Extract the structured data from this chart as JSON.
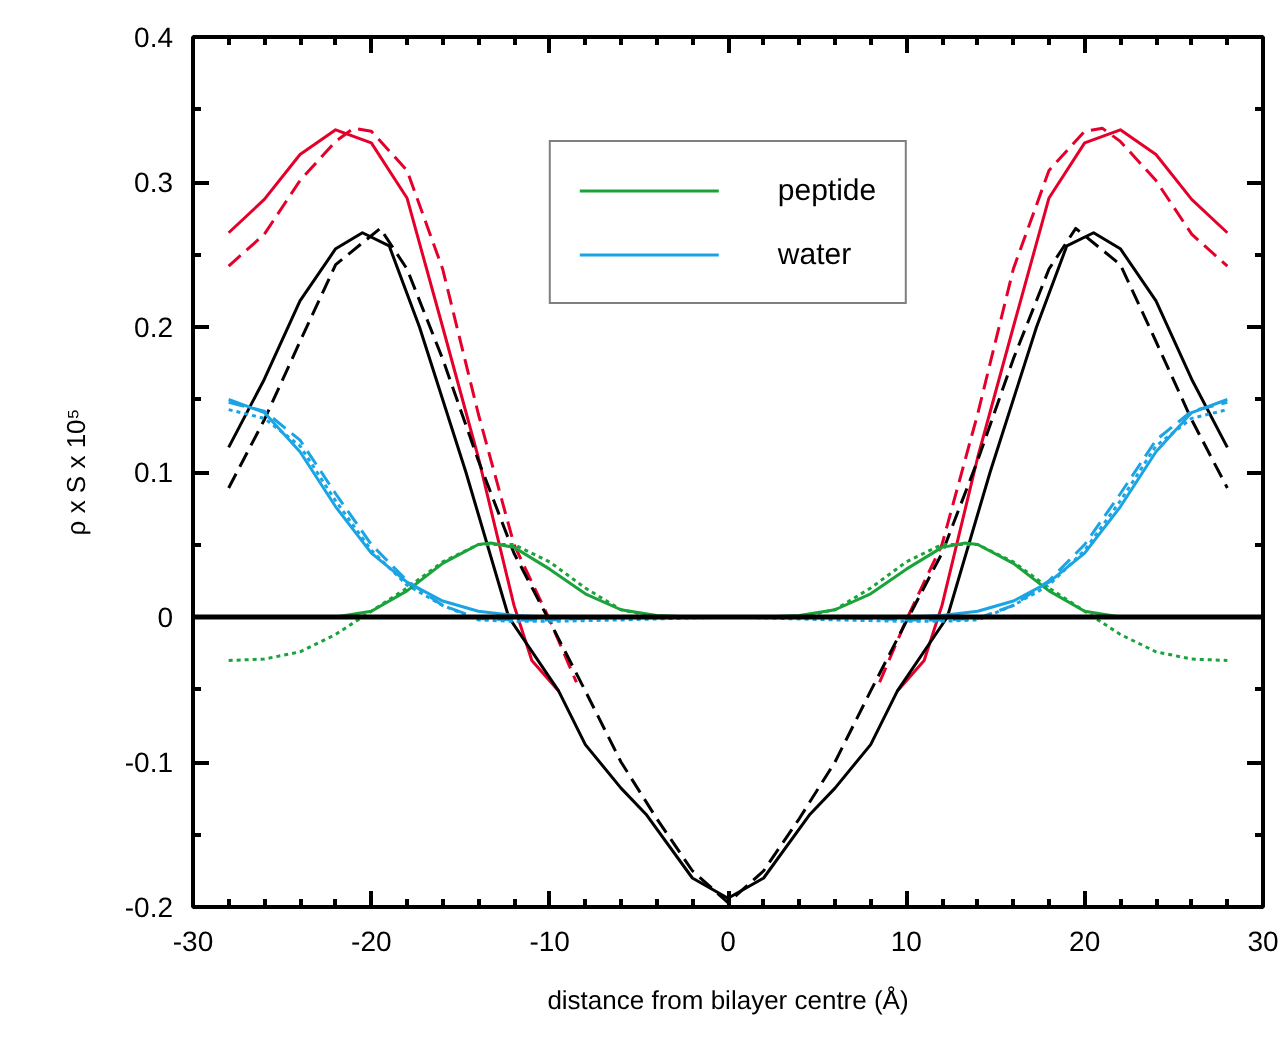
{
  "chart_data": {
    "type": "line",
    "xlabel": "distance from bilayer centre (Å)",
    "ylabel": "ρ x S x 10⁵",
    "xlim": [
      -30,
      30
    ],
    "ylim": [
      -0.2,
      0.4
    ],
    "xticks": [
      -30,
      -20,
      -10,
      0,
      10,
      20,
      30
    ],
    "yticks": [
      -0.2,
      -0.1,
      0,
      0.1,
      0.2,
      0.3,
      0.4
    ],
    "grid": false,
    "legend": "top",
    "marker": "none",
    "ref_lines": [
      {
        "axis": "y",
        "value": 0,
        "color": "#000000"
      }
    ],
    "series": [
      {
        "color": "#e4002b",
        "line_style": "solid",
        "x": [
          -28,
          -26,
          -24,
          -22,
          -20,
          -18,
          -16,
          -14,
          -12,
          -11,
          -9.5,
          0,
          9.5,
          11,
          12,
          14,
          16,
          18,
          20,
          22,
          24,
          26,
          28
        ],
        "values": [
          0.265,
          0.288,
          0.319,
          0.336,
          0.327,
          0.289,
          0.2,
          0.11,
          0.008,
          -0.03,
          -0.051,
          null,
          -0.051,
          -0.03,
          0.008,
          0.11,
          0.2,
          0.289,
          0.327,
          0.336,
          0.319,
          0.288,
          0.265
        ]
      },
      {
        "color": "#e4002b",
        "line_style": "dashed",
        "x": [
          -28,
          -26,
          -24,
          -22,
          -21,
          -20,
          -18,
          -16,
          -14,
          -12,
          -10,
          -8.5,
          0,
          8.5,
          10,
          12,
          14,
          16,
          18,
          20,
          21,
          22,
          24,
          26,
          28
        ],
        "values": [
          0.242,
          0.264,
          0.301,
          0.328,
          0.337,
          0.335,
          0.308,
          0.24,
          0.14,
          0.05,
          -0.002,
          -0.045,
          null,
          -0.045,
          -0.002,
          0.05,
          0.14,
          0.24,
          0.308,
          0.335,
          0.337,
          0.328,
          0.301,
          0.264,
          0.242
        ]
      },
      {
        "color": "#000000",
        "line_style": "solid",
        "x": [
          -28,
          -26,
          -24,
          -22,
          -20.5,
          -19,
          -17.3,
          -14.7,
          -12.3,
          -9.5,
          -8,
          -6,
          -4.6,
          -2,
          0,
          2,
          4.6,
          6,
          8,
          9.5,
          12.3,
          14.7,
          17.3,
          19,
          20.5,
          22,
          24,
          26,
          28
        ],
        "values": [
          0.117,
          0.164,
          0.218,
          0.254,
          0.265,
          0.256,
          0.2,
          0.1,
          0,
          -0.051,
          -0.088,
          -0.118,
          -0.136,
          -0.18,
          -0.194,
          -0.18,
          -0.136,
          -0.118,
          -0.088,
          -0.051,
          0,
          0.1,
          0.2,
          0.256,
          0.265,
          0.254,
          0.218,
          0.164,
          0.117
        ]
      },
      {
        "color": "#000000",
        "line_style": "dashed",
        "x": [
          -28,
          -26,
          -24,
          -22,
          -19.5,
          -18,
          -16,
          -14,
          -12,
          -10,
          -8,
          -6,
          -4,
          -2,
          0,
          2,
          4,
          6,
          8,
          10,
          12,
          14,
          16,
          18,
          19.5,
          22,
          24,
          26,
          28
        ],
        "values": [
          0.089,
          0.136,
          0.19,
          0.243,
          0.268,
          0.24,
          0.178,
          0.108,
          0.044,
          -0.003,
          -0.051,
          -0.1,
          -0.139,
          -0.175,
          -0.197,
          -0.175,
          -0.139,
          -0.1,
          -0.051,
          -0.003,
          0.044,
          0.108,
          0.178,
          0.24,
          0.268,
          0.243,
          0.19,
          0.136,
          0.089
        ]
      },
      {
        "name": "peptide",
        "color": "#1aa33a",
        "line_style": "solid",
        "x": [
          -22,
          -20,
          -18,
          -16,
          -14,
          -13.3,
          -12,
          -10,
          -8,
          -6,
          -4,
          -2,
          0,
          2,
          4,
          6,
          8,
          10,
          12,
          13.3,
          14,
          16,
          18,
          20,
          22
        ],
        "values": [
          0,
          0.004,
          0.018,
          0.037,
          0.05,
          0.051,
          0.048,
          0.033,
          0.016,
          0.005,
          0.001,
          0,
          0,
          0,
          0.001,
          0.005,
          0.016,
          0.033,
          0.048,
          0.051,
          0.05,
          0.037,
          0.018,
          0.004,
          0
        ]
      },
      {
        "name": "water",
        "color": "#1ba4e4",
        "line_style": "solid",
        "x": [
          -28,
          -26,
          -24,
          -22,
          -20,
          -18,
          -16,
          -14,
          -12,
          -10,
          -6,
          0,
          6,
          10,
          12,
          14,
          16,
          18,
          20,
          22,
          24,
          26,
          28
        ],
        "values": [
          0.15,
          0.141,
          0.114,
          0.076,
          0.044,
          0.024,
          0.011,
          0.004,
          0.001,
          0,
          0,
          0,
          0,
          0,
          0.001,
          0.004,
          0.011,
          0.024,
          0.044,
          0.076,
          0.114,
          0.141,
          0.15
        ]
      },
      {
        "color": "#1ba4e4",
        "line_style": "dashed",
        "x": [
          -28,
          -26,
          -24,
          -22,
          -20,
          -18,
          -16,
          -14,
          -12,
          -10,
          -6,
          0,
          6,
          10,
          12,
          14,
          16,
          18,
          20,
          22,
          24,
          26,
          28
        ],
        "values": [
          0.148,
          0.142,
          0.122,
          0.085,
          0.05,
          0.025,
          0.008,
          -0.001,
          -0.002,
          -0.002,
          0,
          0,
          0,
          -0.002,
          -0.002,
          -0.001,
          0.008,
          0.025,
          0.05,
          0.085,
          0.122,
          0.142,
          0.148
        ]
      },
      {
        "color": "#1ba4e4",
        "line_style": "dotted",
        "x": [
          -28,
          -26,
          -24,
          -22,
          -20,
          -18,
          -16,
          -14,
          -12,
          -10,
          -6,
          0,
          6,
          10,
          12,
          14,
          16,
          18,
          20,
          22,
          24,
          26,
          28
        ],
        "values": [
          0.143,
          0.137,
          0.118,
          0.08,
          0.046,
          0.022,
          0.008,
          -0.002,
          -0.003,
          -0.003,
          -0.002,
          0,
          -0.002,
          -0.003,
          -0.003,
          -0.002,
          0.008,
          0.022,
          0.046,
          0.08,
          0.118,
          0.137,
          0.143
        ]
      },
      {
        "color": "#1aa33a",
        "line_style": "dotted",
        "x": [
          -28,
          -26,
          -24,
          -22,
          -20,
          -18,
          -16,
          -14,
          -12,
          -10,
          -8,
          -6,
          -4,
          4,
          6,
          8,
          10,
          12,
          14,
          16,
          18,
          20,
          22,
          24,
          26,
          28
        ],
        "values": [
          -0.03,
          -0.029,
          -0.024,
          -0.012,
          0.004,
          0.02,
          0.038,
          0.05,
          0.05,
          0.038,
          0.02,
          0.005,
          0,
          0,
          0.005,
          0.02,
          0.038,
          0.05,
          0.05,
          0.038,
          0.02,
          0.004,
          -0.012,
          -0.024,
          -0.029,
          -0.03
        ]
      }
    ]
  }
}
